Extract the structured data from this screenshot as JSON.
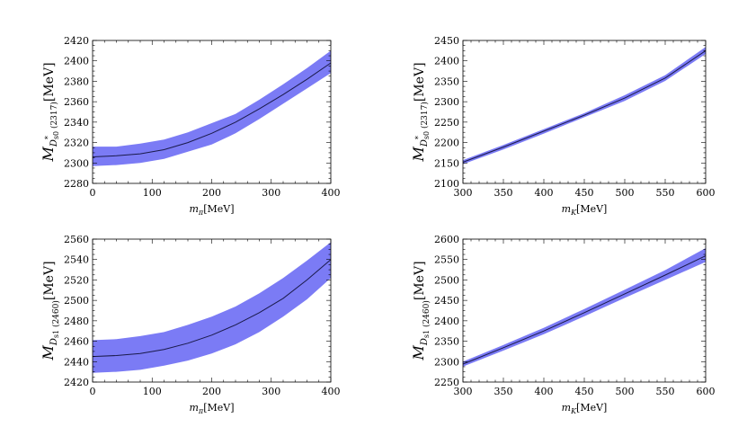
{
  "chart_data": [
    {
      "type": "line",
      "name": "panel-top-left",
      "ylabel_main": "M",
      "ylabel_sub": "D",
      "ylabel_subsub": "s0",
      "ylabel_prime": "*",
      "ylabel_state": " (2317)",
      "ylabel_unit": "[MeV]",
      "xlabel_main": "m",
      "xlabel_sub": "π",
      "xlabel_unit": "[MeV]",
      "xlim": [
        0,
        400
      ],
      "ylim": [
        2280,
        2420
      ],
      "xticks": [
        0,
        100,
        200,
        300,
        400
      ],
      "yticks": [
        2280,
        2300,
        2320,
        2340,
        2360,
        2380,
        2400,
        2420
      ],
      "x": [
        0,
        40,
        80,
        120,
        160,
        200,
        240,
        280,
        320,
        360,
        400
      ],
      "values": [
        2306,
        2307,
        2309,
        2313,
        2320,
        2329,
        2340,
        2353,
        2367,
        2382,
        2398
      ],
      "band_upper": [
        2316,
        2316,
        2319,
        2323,
        2330,
        2339,
        2348,
        2362,
        2377,
        2393,
        2410
      ],
      "band_lower": [
        2297,
        2298,
        2300,
        2304,
        2311,
        2318,
        2329,
        2343,
        2358,
        2373,
        2388
      ]
    },
    {
      "type": "line",
      "name": "panel-top-right",
      "ylabel_main": "M",
      "ylabel_sub": "D",
      "ylabel_subsub": "s0",
      "ylabel_prime": "*",
      "ylabel_state": " (2317)",
      "ylabel_unit": "[MeV]",
      "xlabel_main": "m",
      "xlabel_sub": "K",
      "xlabel_unit": "[MeV]",
      "xlim": [
        300,
        600
      ],
      "ylim": [
        2100,
        2450
      ],
      "xticks": [
        300,
        350,
        400,
        450,
        500,
        550,
        600
      ],
      "yticks": [
        2100,
        2150,
        2200,
        2250,
        2300,
        2350,
        2400,
        2450
      ],
      "x": [
        300,
        350,
        400,
        450,
        500,
        550,
        600
      ],
      "values": [
        2152,
        2189,
        2228,
        2267,
        2309,
        2358,
        2425
      ],
      "band_upper": [
        2157,
        2194,
        2233,
        2272,
        2316,
        2365,
        2434
      ],
      "band_lower": [
        2147,
        2183,
        2222,
        2262,
        2302,
        2351,
        2417
      ]
    },
    {
      "type": "line",
      "name": "panel-bottom-left",
      "ylabel_main": "M",
      "ylabel_sub": "D",
      "ylabel_subsub": "s1",
      "ylabel_prime": "",
      "ylabel_state": " (2460)",
      "ylabel_unit": "[MeV]",
      "xlabel_main": "m",
      "xlabel_sub": "π",
      "xlabel_unit": "[MeV]",
      "xlim": [
        0,
        400
      ],
      "ylim": [
        2420,
        2560
      ],
      "xticks": [
        0,
        100,
        200,
        300,
        400
      ],
      "yticks": [
        2420,
        2440,
        2460,
        2480,
        2500,
        2520,
        2540,
        2560
      ],
      "x": [
        0,
        40,
        80,
        120,
        160,
        200,
        240,
        280,
        320,
        360,
        400
      ],
      "values": [
        2445,
        2446,
        2448,
        2452,
        2458,
        2466,
        2476,
        2488,
        2502,
        2520,
        2540
      ],
      "band_upper": [
        2461,
        2462,
        2465,
        2469,
        2476,
        2484,
        2494,
        2507,
        2522,
        2539,
        2557
      ],
      "band_lower": [
        2429,
        2430,
        2432,
        2436,
        2441,
        2448,
        2457,
        2469,
        2484,
        2501,
        2522
      ]
    },
    {
      "type": "line",
      "name": "panel-bottom-right",
      "ylabel_main": "M",
      "ylabel_sub": "D",
      "ylabel_subsub": "s1",
      "ylabel_prime": "",
      "ylabel_state": " (2460)",
      "ylabel_unit": "[MeV]",
      "xlabel_main": "m",
      "xlabel_sub": "K",
      "xlabel_unit": "[MeV]",
      "xlim": [
        300,
        600
      ],
      "ylim": [
        2250,
        2600
      ],
      "xticks": [
        300,
        350,
        400,
        450,
        500,
        550,
        600
      ],
      "yticks": [
        2250,
        2300,
        2350,
        2400,
        2450,
        2500,
        2550,
        2600
      ],
      "x": [
        300,
        350,
        400,
        450,
        500,
        550,
        600
      ],
      "values": [
        2294,
        2334,
        2375,
        2420,
        2466,
        2512,
        2559
      ],
      "band_upper": [
        2300,
        2341,
        2383,
        2429,
        2476,
        2524,
        2578
      ],
      "band_lower": [
        2288,
        2327,
        2367,
        2411,
        2456,
        2500,
        2544
      ]
    }
  ],
  "colors": {
    "band": "#7b7bf5",
    "line": "#1a1a4a",
    "axis": "#000000"
  }
}
